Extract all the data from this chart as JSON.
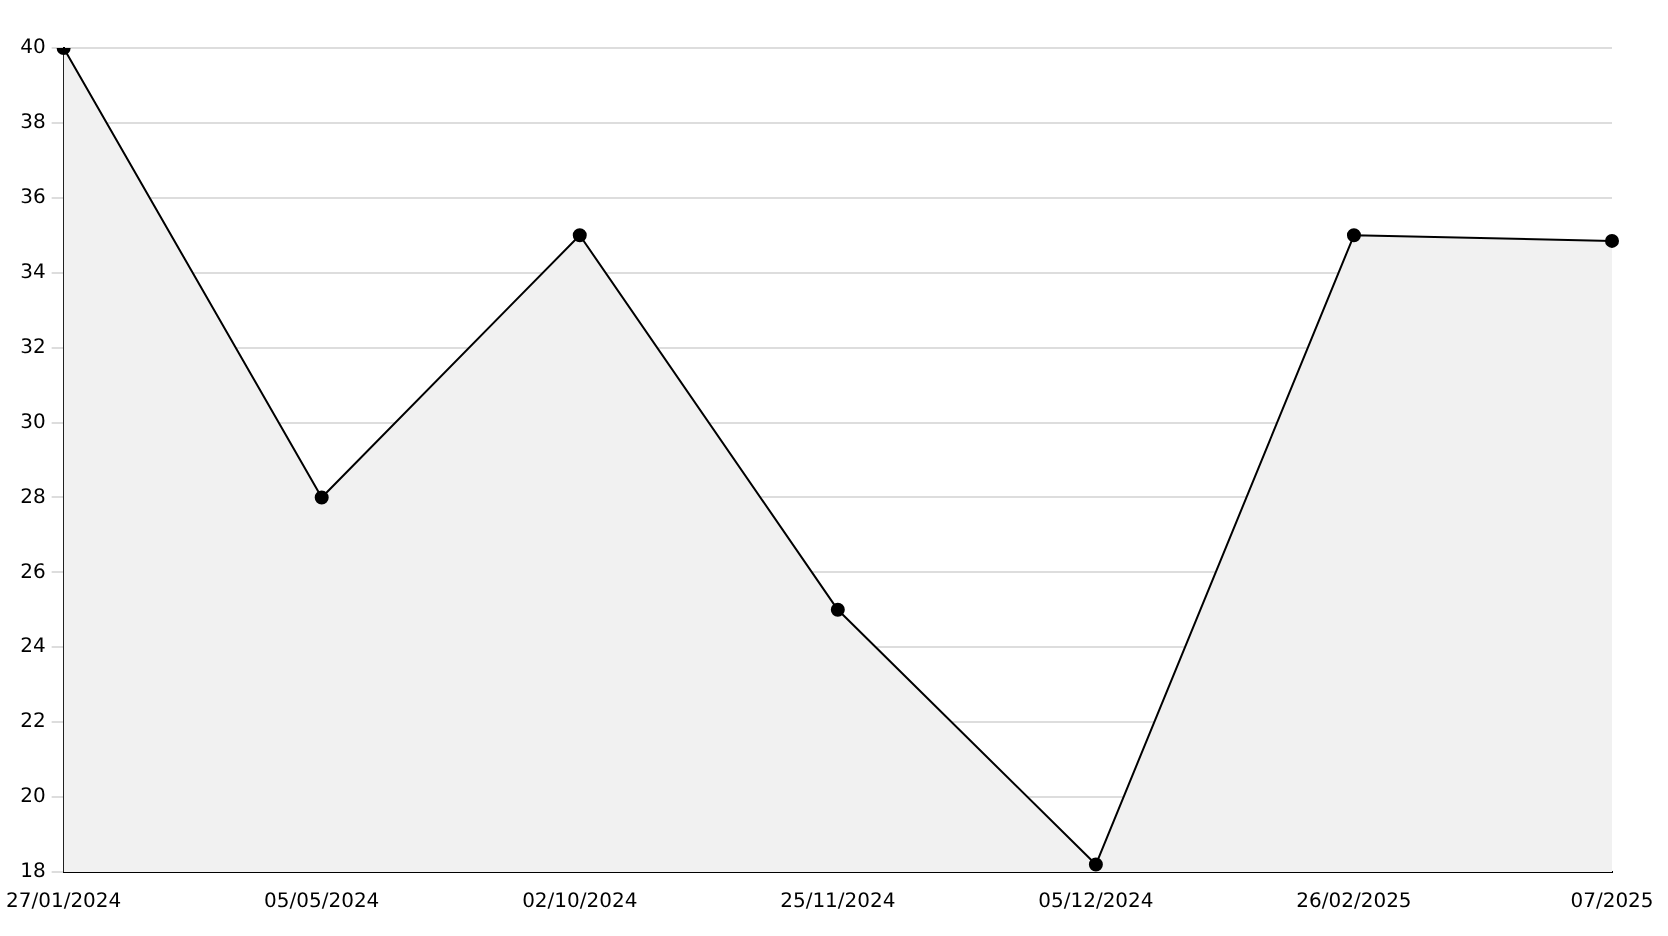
{
  "chart_data": {
    "type": "area",
    "categories": [
      "27/01/2024",
      "05/05/2024",
      "02/10/2024",
      "25/11/2024",
      "05/12/2024",
      "26/02/2025",
      "07/2025"
    ],
    "series": [
      {
        "color": "#000000",
        "values": [
          40,
          28,
          35,
          25,
          18.2,
          35,
          34.85
        ]
      }
    ],
    "ylim": [
      18,
      40
    ],
    "yticks": [
      18,
      20,
      22,
      24,
      26,
      28,
      30,
      32,
      34,
      36,
      38,
      40
    ],
    "grid": "y",
    "legend": false,
    "marker": "circle",
    "line_style": "solid"
  }
}
